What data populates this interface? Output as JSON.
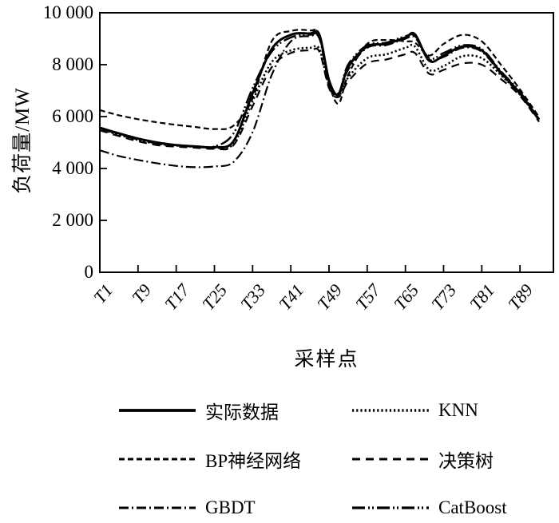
{
  "figure": {
    "background": "#ffffff",
    "stroke_color": "#000000"
  },
  "chart_data": {
    "type": "line",
    "title": "",
    "xlabel": "采样点",
    "ylabel": "负荷量/MW",
    "xlim": [
      1,
      96
    ],
    "ylim": [
      0,
      10000
    ],
    "grid": false,
    "frame": "full-box",
    "legend_position": "below, 2 columns x 3 rows",
    "yticks": [
      {
        "value": 10000,
        "label": "10 000"
      },
      {
        "value": 8000,
        "label": "8 000"
      },
      {
        "value": 6000,
        "label": "6 000"
      },
      {
        "value": 4000,
        "label": "4 000"
      },
      {
        "value": 2000,
        "label": "2 000"
      },
      {
        "value": 0,
        "label": "0"
      }
    ],
    "xticks": [
      {
        "pos": 1,
        "label": "T1"
      },
      {
        "pos": 9,
        "label": "T9"
      },
      {
        "pos": 17,
        "label": "T17"
      },
      {
        "pos": 25,
        "label": "T25"
      },
      {
        "pos": 33,
        "label": "T33"
      },
      {
        "pos": 41,
        "label": "T41"
      },
      {
        "pos": 49,
        "label": "T49"
      },
      {
        "pos": 57,
        "label": "T57"
      },
      {
        "pos": 65,
        "label": "T65"
      },
      {
        "pos": 73,
        "label": "T73"
      },
      {
        "pos": 81,
        "label": "T81"
      },
      {
        "pos": 89,
        "label": "T89"
      }
    ],
    "x": [
      1,
      5,
      9,
      13,
      17,
      21,
      25,
      29,
      33,
      37,
      41,
      45,
      47,
      49,
      51,
      53,
      57,
      61,
      65,
      67,
      70,
      73,
      77,
      81,
      85,
      89,
      93
    ],
    "series": [
      {
        "name": "actual",
        "label": "实际数据",
        "line_style": "solid",
        "dash": "",
        "width": 3,
        "values": [
          5570,
          5350,
          5150,
          5000,
          4900,
          4850,
          4820,
          5050,
          6900,
          8600,
          9150,
          9200,
          9150,
          7400,
          6850,
          7900,
          8700,
          8800,
          9050,
          9170,
          8150,
          8350,
          8700,
          8550,
          7700,
          6900,
          5880
        ]
      },
      {
        "name": "knn",
        "label": "KNN",
        "line_style": "dotted",
        "dash": "2.2 3",
        "width": 2.6,
        "values": [
          5520,
          5300,
          5100,
          4950,
          4880,
          4840,
          4800,
          4950,
          6600,
          8100,
          8550,
          8650,
          8600,
          7200,
          6800,
          7500,
          8250,
          8400,
          8650,
          8700,
          7800,
          7950,
          8330,
          8250,
          7600,
          6850,
          5870
        ]
      },
      {
        "name": "bp-neural-network",
        "label": "BP神经网络",
        "line_style": "dashed-short",
        "dash": "7 4",
        "width": 2.2,
        "values": [
          6250,
          6050,
          5900,
          5780,
          5680,
          5600,
          5520,
          5650,
          6700,
          8900,
          9300,
          9320,
          9150,
          7300,
          6500,
          7600,
          8800,
          8950,
          8900,
          8850,
          8350,
          8800,
          9150,
          8900,
          8000,
          7050,
          5980
        ]
      },
      {
        "name": "decision-tree",
        "label": "决策树",
        "line_style": "dashed-medium",
        "dash": "10 7",
        "width": 2.2,
        "values": [
          5470,
          5250,
          5050,
          4900,
          4840,
          4800,
          4760,
          4900,
          6400,
          7900,
          8450,
          8550,
          8500,
          7100,
          6750,
          7350,
          8050,
          8200,
          8400,
          8450,
          7650,
          7800,
          8050,
          8000,
          7450,
          6800,
          5800
        ]
      },
      {
        "name": "gbdt",
        "label": "GBDT",
        "line_style": "dash-dot",
        "dash": "12 4 2 4",
        "width": 2.2,
        "values": [
          4700,
          4480,
          4330,
          4200,
          4100,
          4050,
          4080,
          4250,
          5400,
          7600,
          8900,
          9100,
          9000,
          7300,
          6850,
          7800,
          8650,
          8750,
          9000,
          9050,
          8200,
          8300,
          8650,
          8500,
          7650,
          6850,
          5850
        ]
      },
      {
        "name": "catboost",
        "label": "CatBoost",
        "line_style": "dash-dot-dot",
        "dash": "16 4 2 3 2 4",
        "width": 2.4,
        "values": [
          5550,
          5320,
          5120,
          4970,
          4900,
          4860,
          4850,
          5350,
          7100,
          8500,
          9050,
          9150,
          9050,
          7400,
          6900,
          8000,
          8750,
          8850,
          9100,
          9100,
          8250,
          8450,
          8750,
          8600,
          7750,
          6950,
          5900
        ]
      }
    ]
  }
}
